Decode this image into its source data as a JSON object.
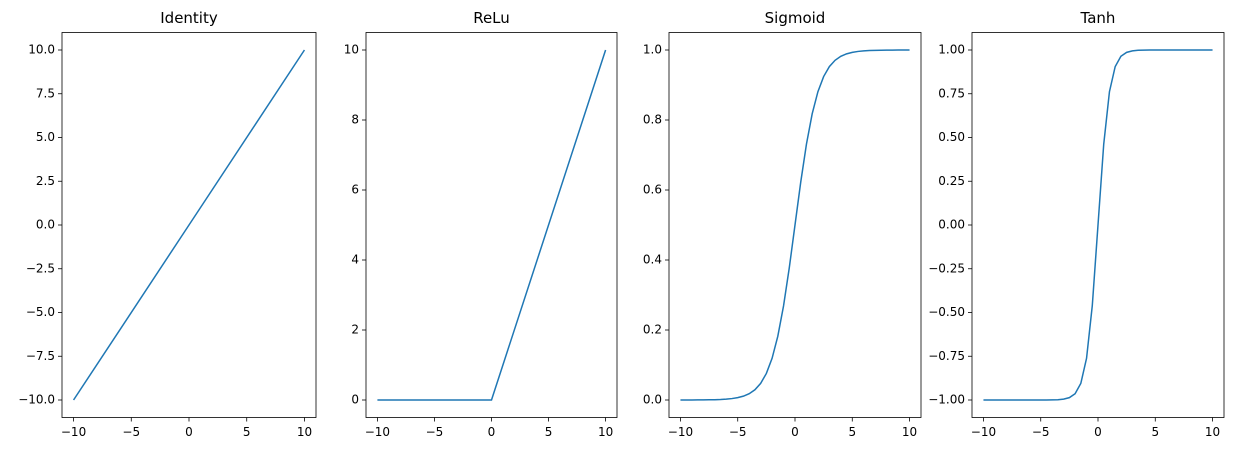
{
  "chart_data": [
    {
      "type": "line",
      "title": "Identity",
      "color": "#1f77b4",
      "x": [
        -10,
        0,
        10
      ],
      "values": [
        -10,
        0,
        10
      ],
      "xlim": [
        -11,
        11
      ],
      "ylim": [
        -11,
        11
      ],
      "xticks": [
        {
          "value": -10,
          "label": "−10"
        },
        {
          "value": -5,
          "label": "−5"
        },
        0,
        5,
        10
      ],
      "yticks": [
        {
          "value": -10,
          "label": "−10.0"
        },
        {
          "value": -7.5,
          "label": "−7.5"
        },
        {
          "value": -5,
          "label": "−5.0"
        },
        {
          "value": -2.5,
          "label": "−2.5"
        },
        {
          "value": 0,
          "label": "0.0"
        },
        2.5,
        {
          "value": 5,
          "label": "5.0"
        },
        7.5,
        {
          "value": 10,
          "label": "10.0"
        }
      ]
    },
    {
      "type": "line",
      "title": "ReLu",
      "color": "#1f77b4",
      "x": [
        -10,
        0,
        10
      ],
      "values": [
        0,
        0,
        10
      ],
      "xlim": [
        -11,
        11
      ],
      "ylim": [
        -0.5,
        10.5
      ],
      "xticks": [
        {
          "value": -10,
          "label": "−10"
        },
        {
          "value": -5,
          "label": "−5"
        },
        0,
        5,
        10
      ],
      "yticks": [
        0,
        2,
        4,
        6,
        8,
        10
      ]
    },
    {
      "type": "line",
      "title": "Sigmoid",
      "color": "#1f77b4",
      "x": [
        -10,
        -9.5,
        -9,
        -8.5,
        -8,
        -7.5,
        -7,
        -6.5,
        -6,
        -5.5,
        -5,
        -4.5,
        -4,
        -3.5,
        -3,
        -2.5,
        -2,
        -1.5,
        -1,
        -0.5,
        0,
        0.5,
        1,
        1.5,
        2,
        2.5,
        3,
        3.5,
        4,
        4.5,
        5,
        5.5,
        6,
        6.5,
        7,
        7.5,
        8,
        8.5,
        9,
        9.5,
        10
      ],
      "values": [
        0.0,
        0.0001,
        0.0001,
        0.0002,
        0.0003,
        0.0006,
        0.0009,
        0.0015,
        0.0025,
        0.0041,
        0.0067,
        0.011,
        0.018,
        0.0293,
        0.0474,
        0.0759,
        0.1192,
        0.1824,
        0.2689,
        0.3775,
        0.5,
        0.6225,
        0.7311,
        0.8176,
        0.8808,
        0.9241,
        0.9526,
        0.9707,
        0.982,
        0.989,
        0.9933,
        0.9959,
        0.9975,
        0.9985,
        0.9991,
        0.9994,
        0.9997,
        0.9998,
        0.9999,
        0.9999,
        1
      ],
      "xlim": [
        -11,
        11
      ],
      "ylim": [
        -0.05,
        1.05
      ],
      "xticks": [
        {
          "value": -10,
          "label": "−10"
        },
        {
          "value": -5,
          "label": "−5"
        },
        0,
        5,
        10
      ],
      "yticks": [
        {
          "value": 0,
          "label": "0.0"
        },
        0.2,
        0.4,
        0.6,
        0.8,
        {
          "value": 1,
          "label": "1.0"
        }
      ]
    },
    {
      "type": "line",
      "title": "Tanh",
      "color": "#1f77b4",
      "x": [
        -10,
        -9.5,
        -9,
        -8.5,
        -8,
        -7.5,
        -7,
        -6.5,
        -6,
        -5.5,
        -5,
        -4.5,
        -4,
        -3.5,
        -3,
        -2.5,
        -2,
        -1.5,
        -1,
        -0.5,
        0,
        0.5,
        1,
        1.5,
        2,
        2.5,
        3,
        3.5,
        4,
        4.5,
        5,
        5.5,
        6,
        6.5,
        7,
        7.5,
        8,
        8.5,
        9,
        9.5,
        10
      ],
      "values": [
        -1,
        -1,
        -1,
        -1,
        -1,
        -1,
        -1,
        -1,
        -1,
        -1,
        -0.9999,
        -0.9998,
        -0.9993,
        -0.9982,
        -0.9951,
        -0.9866,
        -0.964,
        -0.9051,
        -0.7616,
        -0.4621,
        0,
        0.4621,
        0.7616,
        0.9051,
        0.964,
        0.9866,
        0.9951,
        0.9982,
        0.9993,
        0.9998,
        0.9999,
        1,
        1,
        1,
        1,
        1,
        1,
        1,
        1,
        1,
        1
      ],
      "xlim": [
        -11,
        11
      ],
      "ylim": [
        -1.1,
        1.1
      ],
      "xticks": [
        {
          "value": -10,
          "label": "−10"
        },
        {
          "value": -5,
          "label": "−5"
        },
        0,
        5,
        10
      ],
      "yticks": [
        {
          "value": -1,
          "label": "−1.00"
        },
        {
          "value": -0.75,
          "label": "−0.75"
        },
        {
          "value": -0.5,
          "label": "−0.50"
        },
        {
          "value": -0.25,
          "label": "−0.25"
        },
        {
          "value": 0,
          "label": "0.00"
        },
        0.25,
        {
          "value": 0.5,
          "label": "0.50"
        },
        0.75,
        {
          "value": 1,
          "label": "1.00"
        }
      ]
    }
  ]
}
